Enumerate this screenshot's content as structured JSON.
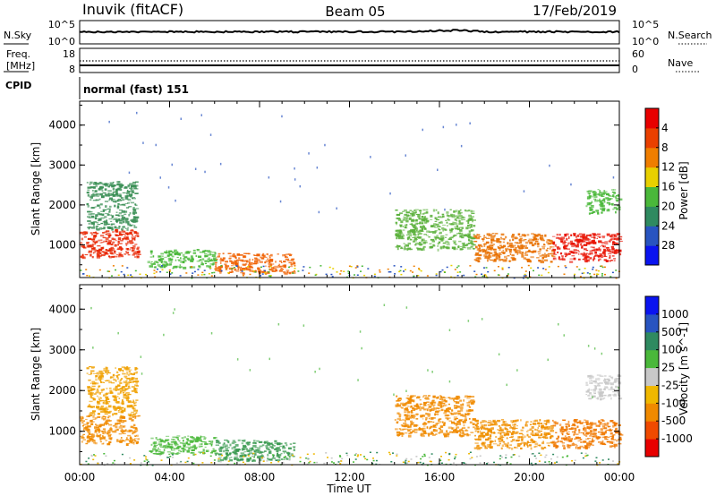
{
  "header": {
    "station": "Inuvik (fitACF)",
    "beam": "Beam 05",
    "date": "17/Feb/2019"
  },
  "sky_panel": {
    "left_label": "N.Sky",
    "right_label": "N.Search",
    "left_ticks": [
      "10^5",
      "10^0"
    ],
    "right_ticks": [
      "10^5",
      "10^0"
    ]
  },
  "freq_panel": {
    "left_label_1": "Freq.",
    "left_label_2": "[MHz]",
    "right_label": "Nave",
    "left_ticks": [
      "18",
      "8"
    ],
    "right_ticks": [
      "60",
      "0"
    ]
  },
  "cpid": {
    "label": "CPID",
    "value": "normal (fast) 151"
  },
  "chart_data": [
    {
      "type": "heatmap",
      "title": "",
      "xlabel": "Time UT",
      "ylabel": "Slant Range [km]",
      "x_ticks": [
        "00:00",
        "04:00",
        "08:00",
        "12:00",
        "16:00",
        "20:00",
        "00:00"
      ],
      "y_ticks": [
        "1000",
        "2000",
        "3000",
        "4000"
      ],
      "xlim_hours": [
        0,
        24
      ],
      "ylim_km": [
        180,
        4600
      ],
      "colorbar": {
        "label": "Power [dB]",
        "tick_labels": [
          "4",
          "8",
          "12",
          "16",
          "20",
          "24",
          "28"
        ],
        "colors": [
          "#0a14f0",
          "#2854c0",
          "#2f8a60",
          "#4ab83a",
          "#e8d000",
          "#f07e00",
          "#ea4000",
          "#e80000"
        ]
      },
      "echo_regions": [
        {
          "t0": 0.0,
          "t1": 2.6,
          "r0": 700,
          "r1": 1400,
          "value": "strong",
          "color": "#e82400"
        },
        {
          "t0": 0.3,
          "t1": 2.5,
          "r0": 1400,
          "r1": 2600,
          "value": "weak",
          "color": "#3a8f55"
        },
        {
          "t0": 3.0,
          "t1": 6.0,
          "r0": 450,
          "r1": 900,
          "value": "moderate",
          "color": "#4ab83a"
        },
        {
          "t0": 6.0,
          "t1": 9.5,
          "r0": 300,
          "r1": 800,
          "value": "strong",
          "color": "#f06000"
        },
        {
          "t0": 14.0,
          "t1": 17.5,
          "r0": 900,
          "r1": 1900,
          "value": "moderate",
          "color": "#5ab03a"
        },
        {
          "t0": 17.5,
          "t1": 21.0,
          "r0": 600,
          "r1": 1300,
          "value": "moderate",
          "color": "#e87000"
        },
        {
          "t0": 21.0,
          "t1": 24.0,
          "r0": 600,
          "r1": 1300,
          "value": "strong",
          "color": "#e81000"
        },
        {
          "t0": 22.5,
          "t1": 24.0,
          "r0": 1800,
          "r1": 2400,
          "value": "weak",
          "color": "#4ab83a"
        }
      ]
    },
    {
      "type": "heatmap",
      "title": "",
      "xlabel": "Time UT",
      "ylabel": "Slant Range [km]",
      "x_ticks": [
        "00:00",
        "04:00",
        "08:00",
        "12:00",
        "16:00",
        "20:00",
        "00:00"
      ],
      "y_ticks": [
        "1000",
        "2000",
        "3000",
        "4000"
      ],
      "xlim_hours": [
        0,
        24
      ],
      "ylim_km": [
        180,
        4600
      ],
      "colorbar": {
        "label": "Velocity [m s^-1]",
        "tick_labels": [
          "1000",
          "500",
          "100",
          "25",
          "-25",
          "-100",
          "-500",
          "-1000"
        ],
        "colors": [
          "#e80000",
          "#f04a00",
          "#f08a00",
          "#f0b800",
          "#c8c8c8",
          "#4ab83a",
          "#2f8a60",
          "#2854c0",
          "#0a14f0"
        ]
      },
      "echo_regions": [
        {
          "t0": 0.0,
          "t1": 2.6,
          "r0": 700,
          "r1": 1400,
          "value": "-100",
          "color": "#f08a00"
        },
        {
          "t0": 0.3,
          "t1": 2.5,
          "r0": 1400,
          "r1": 2600,
          "value": "-100",
          "color": "#f0a000"
        },
        {
          "t0": 3.0,
          "t1": 6.0,
          "r0": 450,
          "r1": 900,
          "value": "25",
          "color": "#4ab83a"
        },
        {
          "t0": 6.0,
          "t1": 9.5,
          "r0": 300,
          "r1": 800,
          "value": "100",
          "color": "#3a9a50"
        },
        {
          "t0": 14.0,
          "t1": 17.5,
          "r0": 900,
          "r1": 1900,
          "value": "-100",
          "color": "#f08a00"
        },
        {
          "t0": 17.5,
          "t1": 21.0,
          "r0": 600,
          "r1": 1300,
          "value": "-100",
          "color": "#f09000"
        },
        {
          "t0": 21.0,
          "t1": 24.0,
          "r0": 600,
          "r1": 1300,
          "value": "-100",
          "color": "#f07800"
        },
        {
          "t0": 22.5,
          "t1": 24.0,
          "r0": 1800,
          "r1": 2400,
          "value": "-25",
          "color": "#c8c8c8"
        }
      ]
    }
  ]
}
